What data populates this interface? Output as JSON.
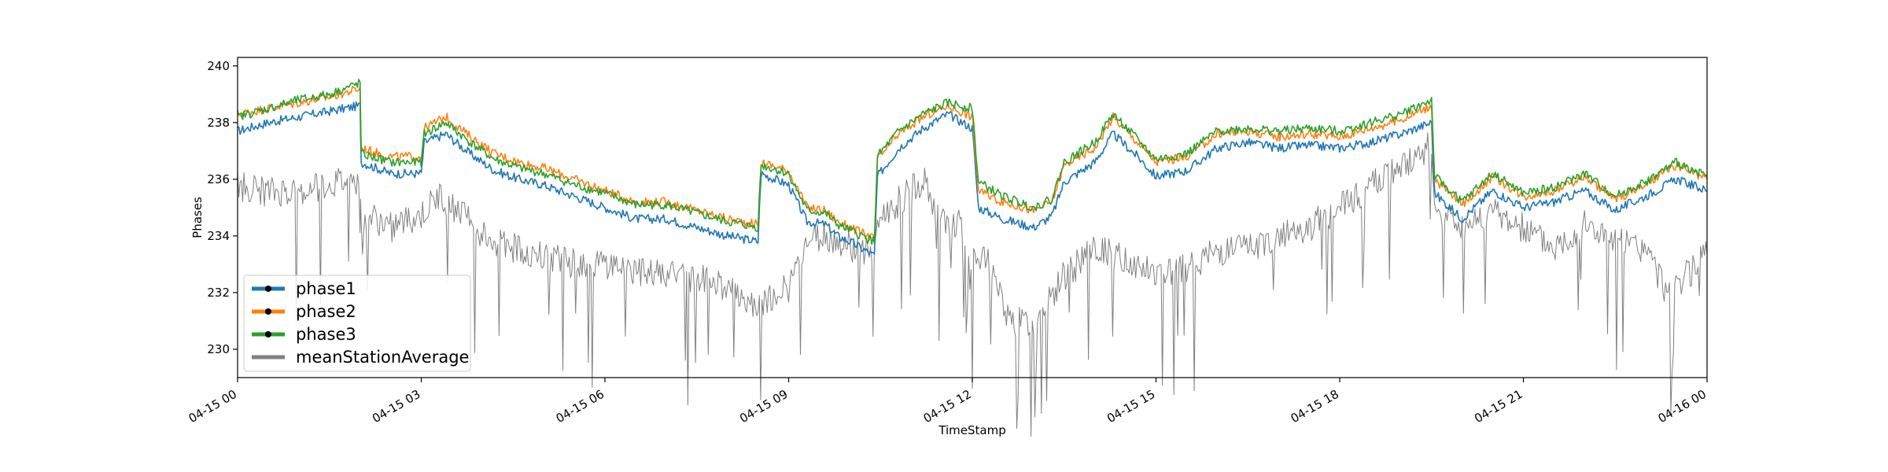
{
  "chart_data": {
    "type": "line",
    "title": "",
    "xlabel": "TimeStamp",
    "ylabel": "Phases",
    "xlim_hours": [
      0,
      24
    ],
    "ylim": [
      229,
      240.3
    ],
    "grid": false,
    "legend_position": "lower-left",
    "x_ticks": [
      {
        "hour": 0,
        "label": "04-15 00"
      },
      {
        "hour": 3,
        "label": "04-15 03"
      },
      {
        "hour": 6,
        "label": "04-15 06"
      },
      {
        "hour": 9,
        "label": "04-15 09"
      },
      {
        "hour": 12,
        "label": "04-15 12"
      },
      {
        "hour": 15,
        "label": "04-15 15"
      },
      {
        "hour": 18,
        "label": "04-15 18"
      },
      {
        "hour": 21,
        "label": "04-15 21"
      },
      {
        "hour": 24,
        "label": "04-16 00"
      }
    ],
    "y_ticks": [
      230,
      232,
      234,
      236,
      238,
      240
    ],
    "series": [
      {
        "name": "phase1",
        "color": "#1f77b4",
        "points": [
          [
            0,
            237.7
          ],
          [
            0.5,
            238.0
          ],
          [
            1.0,
            238.2
          ],
          [
            1.5,
            238.4
          ],
          [
            2.0,
            238.6
          ],
          [
            2.02,
            236.6
          ],
          [
            2.5,
            236.2
          ],
          [
            3.0,
            236.2
          ],
          [
            3.05,
            237.3
          ],
          [
            3.4,
            237.6
          ],
          [
            3.8,
            236.9
          ],
          [
            4.2,
            236.3
          ],
          [
            4.6,
            236.0
          ],
          [
            5.0,
            235.8
          ],
          [
            5.5,
            235.4
          ],
          [
            6.0,
            235.0
          ],
          [
            6.5,
            234.6
          ],
          [
            7.0,
            234.6
          ],
          [
            7.5,
            234.3
          ],
          [
            8.0,
            234.0
          ],
          [
            8.5,
            233.8
          ],
          [
            8.55,
            236.2
          ],
          [
            9.0,
            235.8
          ],
          [
            9.3,
            234.5
          ],
          [
            9.6,
            234.4
          ],
          [
            9.8,
            234.0
          ],
          [
            10.0,
            233.8
          ],
          [
            10.4,
            233.3
          ],
          [
            10.45,
            236.1
          ],
          [
            10.8,
            237.1
          ],
          [
            11.2,
            237.8
          ],
          [
            11.6,
            238.3
          ],
          [
            12.0,
            237.8
          ],
          [
            12.1,
            235.0
          ],
          [
            12.5,
            234.6
          ],
          [
            13.0,
            234.3
          ],
          [
            13.3,
            234.7
          ],
          [
            13.5,
            235.9
          ],
          [
            14.0,
            236.6
          ],
          [
            14.3,
            237.6
          ],
          [
            14.7,
            236.8
          ],
          [
            15.0,
            236.1
          ],
          [
            15.5,
            236.3
          ],
          [
            16.0,
            237.1
          ],
          [
            16.5,
            237.3
          ],
          [
            17.0,
            237.1
          ],
          [
            17.5,
            237.2
          ],
          [
            18.0,
            237.1
          ],
          [
            18.5,
            237.3
          ],
          [
            19.0,
            237.6
          ],
          [
            19.5,
            238.0
          ],
          [
            19.55,
            235.5
          ],
          [
            20.0,
            234.6
          ],
          [
            20.5,
            235.6
          ],
          [
            21.0,
            235.0
          ],
          [
            21.5,
            235.2
          ],
          [
            22.0,
            235.6
          ],
          [
            22.5,
            234.9
          ],
          [
            23.0,
            235.4
          ],
          [
            23.5,
            236.0
          ],
          [
            24.0,
            235.6
          ]
        ]
      },
      {
        "name": "phase2",
        "color": "#ff7f0e",
        "points": [
          [
            0,
            238.3
          ],
          [
            0.5,
            238.5
          ],
          [
            1.0,
            238.7
          ],
          [
            1.5,
            238.9
          ],
          [
            2.0,
            239.2
          ],
          [
            2.02,
            237.1
          ],
          [
            2.5,
            236.8
          ],
          [
            3.0,
            236.8
          ],
          [
            3.05,
            237.8
          ],
          [
            3.4,
            238.2
          ],
          [
            3.8,
            237.5
          ],
          [
            4.2,
            236.9
          ],
          [
            4.6,
            236.6
          ],
          [
            5.0,
            236.4
          ],
          [
            5.5,
            236.0
          ],
          [
            6.0,
            235.6
          ],
          [
            6.5,
            235.2
          ],
          [
            7.0,
            235.2
          ],
          [
            7.5,
            234.9
          ],
          [
            8.0,
            234.6
          ],
          [
            8.5,
            234.4
          ],
          [
            8.55,
            236.6
          ],
          [
            9.0,
            236.3
          ],
          [
            9.3,
            235.0
          ],
          [
            9.6,
            234.9
          ],
          [
            9.8,
            234.5
          ],
          [
            10.0,
            234.3
          ],
          [
            10.4,
            233.9
          ],
          [
            10.45,
            236.7
          ],
          [
            10.8,
            237.6
          ],
          [
            11.2,
            238.2
          ],
          [
            11.6,
            238.6
          ],
          [
            12.0,
            238.2
          ],
          [
            12.1,
            235.6
          ],
          [
            12.5,
            235.2
          ],
          [
            13.0,
            234.9
          ],
          [
            13.3,
            235.2
          ],
          [
            13.5,
            236.5
          ],
          [
            14.0,
            237.1
          ],
          [
            14.3,
            238.2
          ],
          [
            14.7,
            237.3
          ],
          [
            15.0,
            236.6
          ],
          [
            15.5,
            236.8
          ],
          [
            16.0,
            237.6
          ],
          [
            16.5,
            237.7
          ],
          [
            17.0,
            237.5
          ],
          [
            17.5,
            237.6
          ],
          [
            18.0,
            237.5
          ],
          [
            18.5,
            237.8
          ],
          [
            19.0,
            238.1
          ],
          [
            19.5,
            238.6
          ],
          [
            19.55,
            236.0
          ],
          [
            20.0,
            235.1
          ],
          [
            20.5,
            236.1
          ],
          [
            21.0,
            235.4
          ],
          [
            21.5,
            235.6
          ],
          [
            22.0,
            236.1
          ],
          [
            22.5,
            235.3
          ],
          [
            23.0,
            235.8
          ],
          [
            23.5,
            236.5
          ],
          [
            24.0,
            236.0
          ]
        ]
      },
      {
        "name": "phase3",
        "color": "#2ca02c",
        "points": [
          [
            0,
            238.2
          ],
          [
            0.5,
            238.5
          ],
          [
            1.0,
            238.8
          ],
          [
            1.5,
            239.0
          ],
          [
            2.0,
            239.4
          ],
          [
            2.02,
            236.9
          ],
          [
            2.5,
            236.6
          ],
          [
            3.0,
            236.6
          ],
          [
            3.05,
            237.6
          ],
          [
            3.4,
            238.0
          ],
          [
            3.8,
            237.3
          ],
          [
            4.2,
            236.7
          ],
          [
            4.6,
            236.4
          ],
          [
            5.0,
            236.2
          ],
          [
            5.5,
            235.8
          ],
          [
            6.0,
            235.5
          ],
          [
            6.5,
            235.1
          ],
          [
            7.0,
            235.1
          ],
          [
            7.5,
            234.8
          ],
          [
            8.0,
            234.5
          ],
          [
            8.5,
            234.3
          ],
          [
            8.55,
            236.5
          ],
          [
            9.0,
            236.2
          ],
          [
            9.3,
            234.9
          ],
          [
            9.6,
            234.8
          ],
          [
            9.8,
            234.4
          ],
          [
            10.0,
            234.2
          ],
          [
            10.4,
            233.8
          ],
          [
            10.45,
            236.8
          ],
          [
            10.8,
            237.7
          ],
          [
            11.2,
            238.3
          ],
          [
            11.6,
            238.7
          ],
          [
            12.0,
            238.5
          ],
          [
            12.1,
            235.9
          ],
          [
            12.5,
            235.4
          ],
          [
            13.0,
            235.0
          ],
          [
            13.3,
            235.3
          ],
          [
            13.5,
            236.6
          ],
          [
            14.0,
            237.3
          ],
          [
            14.3,
            238.3
          ],
          [
            14.7,
            237.4
          ],
          [
            15.0,
            236.7
          ],
          [
            15.5,
            236.9
          ],
          [
            16.0,
            237.7
          ],
          [
            16.5,
            237.8
          ],
          [
            17.0,
            237.7
          ],
          [
            17.5,
            237.8
          ],
          [
            18.0,
            237.7
          ],
          [
            18.5,
            238.0
          ],
          [
            19.0,
            238.3
          ],
          [
            19.5,
            238.8
          ],
          [
            19.55,
            236.1
          ],
          [
            20.0,
            235.2
          ],
          [
            20.5,
            236.2
          ],
          [
            21.0,
            235.5
          ],
          [
            21.5,
            235.7
          ],
          [
            22.0,
            236.2
          ],
          [
            22.5,
            235.4
          ],
          [
            23.0,
            235.9
          ],
          [
            23.5,
            236.6
          ],
          [
            24.0,
            236.1
          ]
        ]
      },
      {
        "name": "meanStationAverage",
        "color": "#808080",
        "points": [
          [
            0,
            235.8
          ],
          [
            0.5,
            235.5
          ],
          [
            1.0,
            235.6
          ],
          [
            1.5,
            235.8
          ],
          [
            2.0,
            236.0
          ],
          [
            2.02,
            234.8
          ],
          [
            2.5,
            234.3
          ],
          [
            3.0,
            234.7
          ],
          [
            3.3,
            235.4
          ],
          [
            3.6,
            234.9
          ],
          [
            4.0,
            234.0
          ],
          [
            4.5,
            233.6
          ],
          [
            5.0,
            233.3
          ],
          [
            5.5,
            233.0
          ],
          [
            6.0,
            233.0
          ],
          [
            6.5,
            232.8
          ],
          [
            7.0,
            232.6
          ],
          [
            7.5,
            232.5
          ],
          [
            8.0,
            232.2
          ],
          [
            8.5,
            231.6
          ],
          [
            8.8,
            232.0
          ],
          [
            9.0,
            232.2
          ],
          [
            9.3,
            233.8
          ],
          [
            9.6,
            234.0
          ],
          [
            10.0,
            233.6
          ],
          [
            10.4,
            233.4
          ],
          [
            10.45,
            234.5
          ],
          [
            10.8,
            235.2
          ],
          [
            11.2,
            236.0
          ],
          [
            11.5,
            234.6
          ],
          [
            11.8,
            234.4
          ],
          [
            12.0,
            233.2
          ],
          [
            12.3,
            233.0
          ],
          [
            12.6,
            231.0
          ],
          [
            13.0,
            231.0
          ],
          [
            13.3,
            231.8
          ],
          [
            13.5,
            232.6
          ],
          [
            14.0,
            233.5
          ],
          [
            14.5,
            233.2
          ],
          [
            15.0,
            232.7
          ],
          [
            15.5,
            232.9
          ],
          [
            16.0,
            233.4
          ],
          [
            16.5,
            233.6
          ],
          [
            17.0,
            233.9
          ],
          [
            17.5,
            234.3
          ],
          [
            18.0,
            235.0
          ],
          [
            18.5,
            235.8
          ],
          [
            19.0,
            236.5
          ],
          [
            19.5,
            237.2
          ],
          [
            19.55,
            235.0
          ],
          [
            20.0,
            234.3
          ],
          [
            20.5,
            234.9
          ],
          [
            21.0,
            234.3
          ],
          [
            21.5,
            233.6
          ],
          [
            22.0,
            234.4
          ],
          [
            22.5,
            233.8
          ],
          [
            23.0,
            233.5
          ],
          [
            23.3,
            232.2
          ],
          [
            23.6,
            232.5
          ],
          [
            24.0,
            233.3
          ]
        ]
      }
    ]
  }
}
